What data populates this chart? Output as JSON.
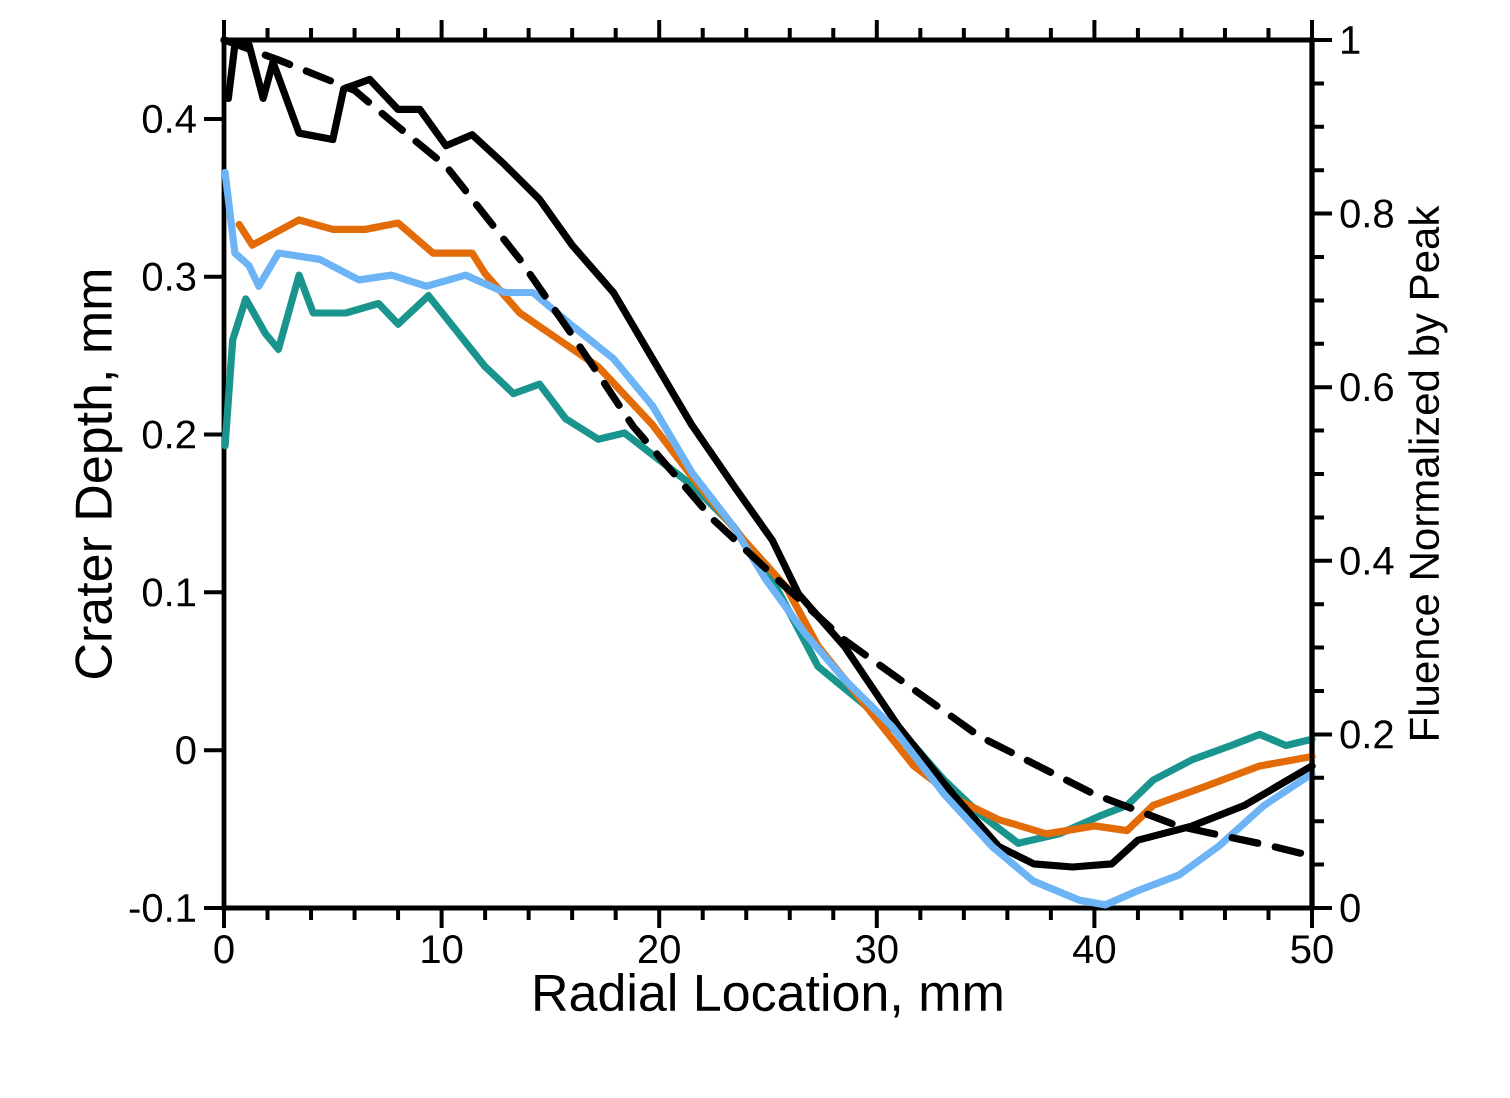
{
  "chart_data": {
    "type": "line",
    "xlabel": "Radial Location, mm",
    "ylabel": "Crater Depth, mm",
    "y2label": "Fluence Normalized by Peak",
    "xlim": [
      0,
      50
    ],
    "ylim": [
      -0.1,
      0.45
    ],
    "y2lim": [
      0,
      1
    ],
    "xticks": [
      0,
      {
        "value": 2,
        "label": null
      },
      {
        "value": 4,
        "label": null
      },
      {
        "value": 6,
        "label": null
      },
      {
        "value": 8,
        "label": null
      },
      10,
      {
        "value": 12,
        "label": null
      },
      {
        "value": 14,
        "label": null
      },
      {
        "value": 16,
        "label": null
      },
      {
        "value": 18,
        "label": null
      },
      20,
      {
        "value": 22,
        "label": null
      },
      {
        "value": 24,
        "label": null
      },
      {
        "value": 26,
        "label": null
      },
      {
        "value": 28,
        "label": null
      },
      30,
      {
        "value": 32,
        "label": null
      },
      {
        "value": 34,
        "label": null
      },
      {
        "value": 36,
        "label": null
      },
      {
        "value": 38,
        "label": null
      },
      40,
      {
        "value": 42,
        "label": null
      },
      {
        "value": 44,
        "label": null
      },
      {
        "value": 46,
        "label": null
      },
      {
        "value": 48,
        "label": null
      },
      50
    ],
    "yticks": [
      -0.1,
      0,
      0.1,
      0.2,
      0.3,
      0.4
    ],
    "y2ticks": [
      0,
      {
        "value": 0.05,
        "label": null
      },
      {
        "value": 0.1,
        "label": null
      },
      {
        "value": 0.15,
        "label": null
      },
      0.2,
      {
        "value": 0.25,
        "label": null
      },
      {
        "value": 0.3,
        "label": null
      },
      {
        "value": 0.35,
        "label": null
      },
      0.4,
      {
        "value": 0.45,
        "label": null
      },
      {
        "value": 0.5,
        "label": null
      },
      {
        "value": 0.55,
        "label": null
      },
      0.6,
      {
        "value": 0.65,
        "label": null
      },
      {
        "value": 0.7,
        "label": null
      },
      {
        "value": 0.75,
        "label": null
      },
      0.8,
      {
        "value": 0.85,
        "label": null
      },
      {
        "value": 0.9,
        "label": null
      },
      {
        "value": 0.95,
        "label": null
      },
      1
    ],
    "series": [
      {
        "color": "#1a958e",
        "x": [
          0.05,
          0.4,
          1.0,
          1.9,
          2.5,
          3.45,
          4.1,
          5.6,
          7.1,
          8.0,
          9.4,
          10.5,
          12.0,
          13.3,
          14.5,
          15.7,
          17.2,
          18.4,
          20.0,
          21.5,
          23.4,
          25.2,
          27.3,
          29.5,
          31.7,
          33.1,
          34.7,
          36.5,
          38.4,
          40.2,
          41.5,
          42.7,
          44.5,
          46.3,
          47.6,
          48.8,
          50
        ],
        "values": [
          0.193,
          0.26,
          0.286,
          0.264,
          0.254,
          0.301,
          0.277,
          0.277,
          0.283,
          0.27,
          0.288,
          0.269,
          0.243,
          0.226,
          0.232,
          0.21,
          0.197,
          0.201,
          0.184,
          0.168,
          0.142,
          0.108,
          0.053,
          0.028,
          0.003,
          -0.019,
          -0.04,
          -0.059,
          -0.053,
          -0.042,
          -0.035,
          -0.019,
          -0.006,
          0.003,
          0.01,
          0.003,
          0.007
        ]
      },
      {
        "color": "#e36c09",
        "x": [
          0.7,
          1.3,
          3.45,
          5.0,
          6.5,
          8.0,
          9.6,
          11.4,
          12.0,
          13.6,
          15.4,
          17.2,
          19.7,
          21.8,
          23.9,
          25.8,
          27.3,
          29.5,
          31.7,
          33.8,
          35.6,
          37.8,
          40.0,
          41.5,
          42.7,
          45.1,
          47.6,
          50
        ],
        "values": [
          0.333,
          0.32,
          0.336,
          0.33,
          0.33,
          0.334,
          0.315,
          0.315,
          0.302,
          0.277,
          0.26,
          0.243,
          0.206,
          0.168,
          0.133,
          0.104,
          0.066,
          0.028,
          -0.01,
          -0.032,
          -0.044,
          -0.053,
          -0.048,
          -0.051,
          -0.035,
          -0.023,
          -0.01,
          -0.004
        ]
      },
      {
        "color": "#000000",
        "x": [
          0.2,
          0.5,
          1.15,
          1.8,
          2.25,
          3.45,
          5.0,
          5.5,
          6.7,
          8.0,
          9.0,
          10.2,
          11.4,
          12.9,
          14.5,
          16.0,
          17.9,
          19.7,
          21.5,
          23.4,
          25.2,
          26.4,
          28.5,
          31.0,
          33.5,
          35.6,
          37.2,
          39.0,
          40.8,
          42.0,
          44.5,
          46.9,
          50
        ],
        "values": [
          0.413,
          0.447,
          0.447,
          0.413,
          0.436,
          0.391,
          0.387,
          0.419,
          0.425,
          0.406,
          0.406,
          0.383,
          0.39,
          0.371,
          0.349,
          0.32,
          0.29,
          0.248,
          0.206,
          0.168,
          0.133,
          0.099,
          0.066,
          0.015,
          -0.028,
          -0.061,
          -0.072,
          -0.074,
          -0.072,
          -0.057,
          -0.048,
          -0.035,
          -0.01
        ]
      },
      {
        "color": "#6cb4f5",
        "x": [
          0.05,
          0.5,
          1.15,
          1.6,
          2.5,
          4.4,
          6.2,
          7.7,
          9.3,
          11.1,
          12.9,
          14.2,
          16.0,
          17.9,
          19.7,
          21.5,
          23.4,
          24.9,
          26.7,
          28.5,
          30.7,
          33.1,
          35.3,
          37.2,
          39.3,
          40.5,
          42.0,
          43.9,
          45.7,
          47.8,
          50
        ],
        "values": [
          0.366,
          0.315,
          0.307,
          0.294,
          0.315,
          0.311,
          0.298,
          0.301,
          0.294,
          0.301,
          0.29,
          0.29,
          0.269,
          0.248,
          0.218,
          0.176,
          0.142,
          0.108,
          0.074,
          0.045,
          0.015,
          -0.028,
          -0.061,
          -0.083,
          -0.095,
          -0.098,
          -0.089,
          -0.079,
          -0.061,
          -0.035,
          -0.015
        ]
      },
      {
        "color": "#000000",
        "axis": "y2",
        "line_style": "dashed",
        "x": [
          0,
          2.5,
          6.0,
          8.0,
          10.2,
          13.6,
          16.0,
          18.8,
          22.5,
          25.8,
          28.5,
          34.7,
          40.0,
          43.9,
          48.2,
          50
        ],
        "values": [
          1.0,
          0.977,
          0.942,
          0.9,
          0.855,
          0.747,
          0.66,
          0.555,
          0.447,
          0.37,
          0.309,
          0.198,
          0.131,
          0.094,
          0.071,
          0.06
        ]
      }
    ]
  }
}
